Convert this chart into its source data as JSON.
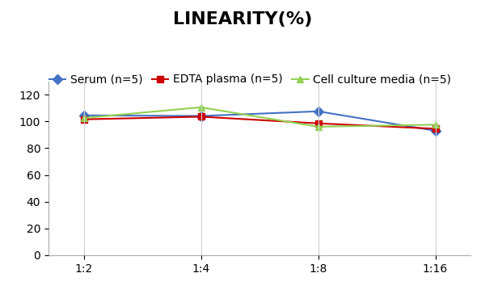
{
  "title": "LINEARITY(%)",
  "x_labels": [
    "1:2",
    "1:4",
    "1:8",
    "1:16"
  ],
  "series": [
    {
      "label": "Serum (n=5)",
      "color": "#4472C4",
      "marker": "D",
      "values": [
        104.5,
        104.0,
        107.5,
        93.0
      ]
    },
    {
      "label": "EDTA plasma (n=5)",
      "color": "#CC0000",
      "marker": "s",
      "values": [
        101.5,
        103.5,
        98.5,
        94.5
      ]
    },
    {
      "label": "Cell culture media (n=5)",
      "color": "#92D050",
      "marker": "^",
      "values": [
        102.5,
        110.5,
        96.0,
        97.5
      ]
    }
  ],
  "ylim": [
    0,
    130
  ],
  "yticks": [
    0,
    20,
    40,
    60,
    80,
    100,
    120
  ],
  "background_color": "#FFFFFF",
  "title_fontsize": 16,
  "legend_fontsize": 10,
  "tick_fontsize": 10,
  "markersize": 6,
  "linewidth": 1.5
}
